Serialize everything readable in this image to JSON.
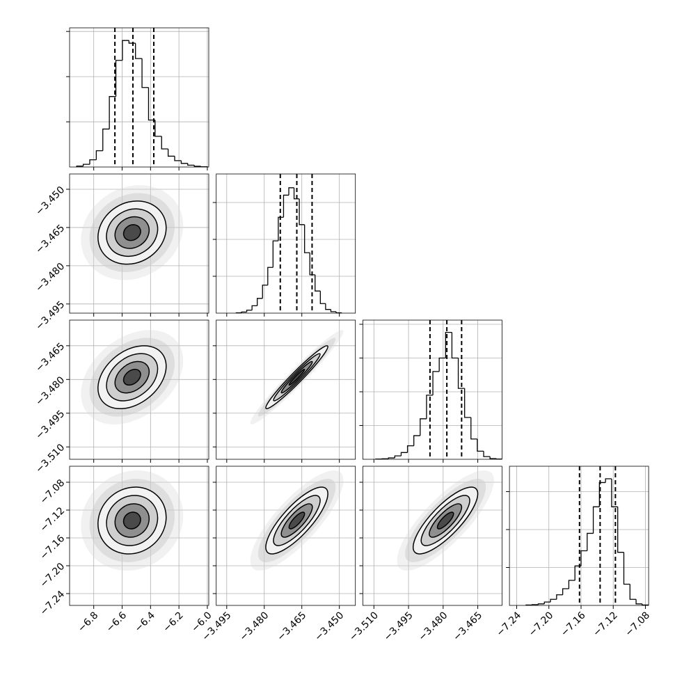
{
  "chart_data": [
    {
      "type": "histogram",
      "color": "#000000",
      "bins": [
        -6.92,
        -6.874,
        -6.828,
        -6.782,
        -6.736,
        -6.69,
        -6.644,
        -6.598,
        -6.552,
        -6.506,
        -6.46,
        -6.414,
        -6.368,
        -6.322,
        -6.276,
        -6.23,
        -6.184,
        -6.138,
        -6.092,
        -6.046,
        -6.0
      ],
      "counts": [
        10,
        30,
        80,
        180,
        420,
        780,
        1180,
        1400,
        1370,
        1200,
        880,
        520,
        340,
        200,
        120,
        70,
        40,
        20,
        8,
        3
      ],
      "quantiles": [
        -6.651,
        -6.524,
        -6.377
      ],
      "xlim": [
        -6.97,
        -5.99
      ],
      "ylim": [
        0,
        1540
      ],
      "xticks": [
        -6.8,
        -6.6,
        -6.4,
        -6.2,
        -6.0
      ],
      "yticks": [
        500,
        1000,
        1500
      ]
    },
    {
      "type": "contour",
      "mean": [
        -6.53,
        -3.467
      ],
      "std": [
        0.12,
        0.0062
      ],
      "corr": 0.15,
      "xlim": [
        -6.97,
        -5.99
      ],
      "ylim": [
        -3.4986,
        -3.444
      ],
      "xticks": [
        -6.8,
        -6.6,
        -6.4,
        -6.2,
        -6.0
      ],
      "yticks": [
        {
          "value": -3.45,
          "label": "−3.450"
        },
        {
          "value": -3.465,
          "label": "−3.465"
        },
        {
          "value": -3.48,
          "label": "−3.480"
        },
        {
          "value": -3.495,
          "label": "−3.495"
        }
      ]
    },
    {
      "type": "histogram",
      "color": "#000000",
      "bins": [
        -3.4912,
        -3.4891,
        -3.487,
        -3.4849,
        -3.4828,
        -3.4807,
        -3.4786,
        -3.4765,
        -3.4744,
        -3.4723,
        -3.4702,
        -3.4681,
        -3.466,
        -3.4639,
        -3.4618,
        -3.4597,
        -3.4576,
        -3.4555,
        -3.4534,
        -3.4513,
        -3.4492
      ],
      "counts": [
        5,
        15,
        40,
        100,
        200,
        380,
        620,
        980,
        1300,
        1600,
        1700,
        1550,
        1200,
        820,
        520,
        300,
        130,
        50,
        20,
        5
      ],
      "quantiles": [
        -3.4736,
        -3.467,
        -3.4609
      ],
      "xlim": [
        -3.4992,
        -3.4436
      ],
      "ylim": [
        0,
        1887
      ],
      "xticks": [
        -3.495,
        -3.48,
        -3.465,
        -3.45
      ],
      "yticks": [
        500,
        1000,
        1500
      ]
    },
    {
      "type": "contour",
      "mean": [
        -6.53,
        -3.479
      ],
      "std": [
        0.12,
        0.007
      ],
      "corr": 0.35,
      "xlim": [
        -6.97,
        -5.99
      ],
      "ylim": [
        -3.5155,
        -3.4536
      ],
      "xticks": [
        -6.8,
        -6.6,
        -6.4,
        -6.2,
        -6.0
      ],
      "yticks": [
        {
          "value": -3.465,
          "label": "−3.465"
        },
        {
          "value": -3.48,
          "label": "−3.480"
        },
        {
          "value": -3.495,
          "label": "−3.495"
        },
        {
          "value": -3.51,
          "label": "−3.510"
        }
      ]
    },
    {
      "type": "contour",
      "mean": [
        -3.467,
        -3.479
      ],
      "std": [
        0.0062,
        0.007
      ],
      "corr": 0.97,
      "xlim": [
        -3.4992,
        -3.4436
      ],
      "ylim": [
        -3.5155,
        -3.4536
      ],
      "xticks": [
        -3.495,
        -3.48,
        -3.465,
        -3.45
      ],
      "yticks": [
        -3.465,
        -3.48,
        -3.495,
        -3.51
      ]
    },
    {
      "type": "histogram",
      "color": "#000000",
      "bins": [
        -3.5092,
        -3.50645,
        -3.5037,
        -3.50095,
        -3.4982,
        -3.49545,
        -3.4927,
        -3.48995,
        -3.4872,
        -3.48445,
        -3.4817,
        -3.47895,
        -3.4762,
        -3.47345,
        -3.4707,
        -3.46795,
        -3.4652,
        -3.46245,
        -3.4597,
        -3.45695,
        -3.4542
      ],
      "counts": [
        3,
        8,
        20,
        50,
        100,
        200,
        350,
        600,
        950,
        1300,
        1500,
        1880,
        1500,
        1050,
        620,
        300,
        120,
        40,
        10,
        3
      ],
      "quantiles": [
        -3.4857,
        -3.4784,
        -3.472
      ],
      "xlim": [
        -3.5148,
        -3.4545
      ],
      "ylim": [
        0,
        2062
      ],
      "xticks": [
        -3.51,
        -3.495,
        -3.48,
        -3.465
      ],
      "yticks": [
        500,
        1000,
        1500,
        2000
      ]
    },
    {
      "type": "contour",
      "mean": [
        -6.53,
        -7.135
      ],
      "std": [
        0.12,
        0.024
      ],
      "corr": 0.1,
      "xlim": [
        -6.97,
        -5.99
      ],
      "ylim": [
        -7.257,
        -7.057
      ],
      "xticks": [
        {
          "value": -6.8,
          "label": "−6.8"
        },
        {
          "value": -6.6,
          "label": "−6.6"
        },
        {
          "value": -6.4,
          "label": "−6.4"
        },
        {
          "value": -6.2,
          "label": "−6.2"
        },
        {
          "value": -6.0,
          "label": "−6.0"
        }
      ],
      "yticks": [
        {
          "value": -7.08,
          "label": "−7.08"
        },
        {
          "value": -7.12,
          "label": "−7.12"
        },
        {
          "value": -7.16,
          "label": "−7.16"
        },
        {
          "value": -7.2,
          "label": "−7.20"
        },
        {
          "value": -7.24,
          "label": "−7.24"
        }
      ]
    },
    {
      "type": "contour",
      "mean": [
        -3.467,
        -7.135
      ],
      "std": [
        0.0062,
        0.024
      ],
      "corr": 0.8,
      "xlim": [
        -3.4992,
        -3.4436
      ],
      "ylim": [
        -7.257,
        -7.057
      ],
      "xticks": [
        {
          "value": -3.495,
          "label": "−3.495"
        },
        {
          "value": -3.48,
          "label": "−3.480"
        },
        {
          "value": -3.465,
          "label": "−3.465"
        },
        {
          "value": -3.45,
          "label": "−3.450"
        }
      ],
      "yticks": [
        -7.08,
        -7.12,
        -7.16,
        -7.2,
        -7.24
      ]
    },
    {
      "type": "contour",
      "mean": [
        -3.479,
        -7.135
      ],
      "std": [
        0.007,
        0.024
      ],
      "corr": 0.8,
      "xlim": [
        -3.5148,
        -3.4545
      ],
      "ylim": [
        -7.257,
        -7.057
      ],
      "xticks": [
        {
          "value": -3.51,
          "label": "−3.510"
        },
        {
          "value": -3.495,
          "label": "−3.495"
        },
        {
          "value": -3.48,
          "label": "−3.480"
        },
        {
          "value": -3.465,
          "label": "−3.465"
        }
      ],
      "yticks": [
        -7.08,
        -7.12,
        -7.16,
        -7.2,
        -7.24
      ]
    },
    {
      "type": "histogram",
      "color": "#000000",
      "bins": [
        -7.2284,
        -7.2208,
        -7.2132,
        -7.2056,
        -7.198,
        -7.1904,
        -7.1828,
        -7.1752,
        -7.1676,
        -7.16,
        -7.1524,
        -7.1448,
        -7.1372,
        -7.1296,
        -7.122,
        -7.1144,
        -7.1068,
        -7.0992,
        -7.0916,
        -7.084,
        -7.0764
      ],
      "counts": [
        5,
        10,
        20,
        45,
        80,
        140,
        220,
        330,
        520,
        720,
        950,
        1300,
        1620,
        1670,
        1300,
        700,
        280,
        80,
        20,
        5
      ],
      "quantiles": [
        -7.1619,
        -7.1363,
        -7.1173
      ],
      "xlim": [
        -7.249,
        -7.076
      ],
      "ylim": [
        0,
        1835
      ],
      "xticks": [
        {
          "value": -7.24,
          "label": "−7.24"
        },
        {
          "value": -7.2,
          "label": "−7.20"
        },
        {
          "value": -7.16,
          "label": "−7.16"
        },
        {
          "value": -7.12,
          "label": "−7.12"
        },
        {
          "value": -7.08,
          "label": "−7.08"
        }
      ],
      "yticks": [
        500,
        1000,
        1500
      ]
    }
  ]
}
